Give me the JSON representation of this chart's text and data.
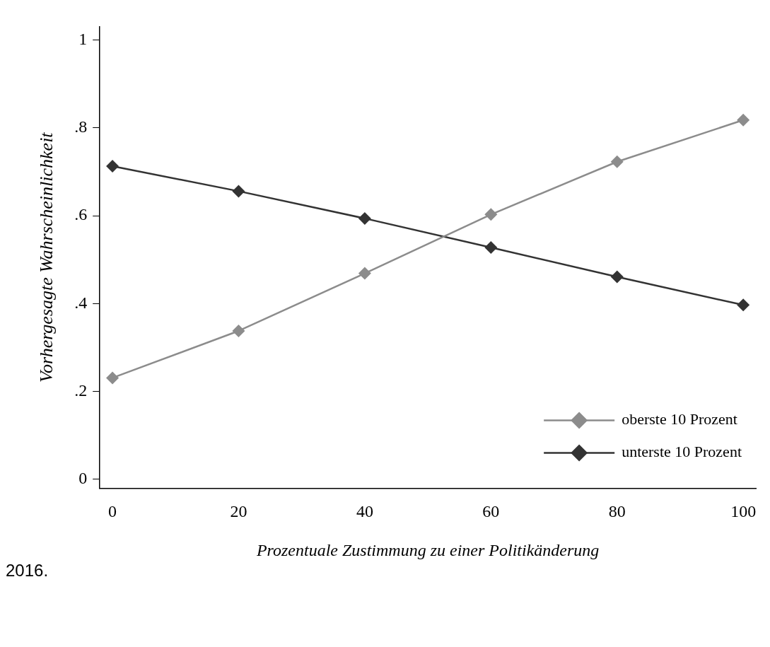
{
  "chart_data": {
    "type": "line",
    "xlabel": "Prozentuale Zustimmung zu einer Politikänderung",
    "ylabel": "Vorhergesagte Wahrscheinlichkeit",
    "x": [
      0,
      20,
      40,
      60,
      80,
      100
    ],
    "series": [
      {
        "name": "oberste 10 Prozent",
        "color": "#8c8c8c",
        "values": [
          0.231,
          0.338,
          0.469,
          0.603,
          0.723,
          0.818
        ]
      },
      {
        "name": "unterste 10 Prozent",
        "color": "#333333",
        "values": [
          0.713,
          0.656,
          0.594,
          0.528,
          0.461,
          0.397
        ]
      }
    ],
    "xlim": [
      -2,
      102
    ],
    "xticks": [
      0,
      20,
      40,
      60,
      80,
      100
    ],
    "ylim": [
      -0.02,
      1.03
    ],
    "yticks": [
      0,
      {
        "value": 0.2,
        "label": ".2"
      },
      {
        "value": 0.4,
        "label": ".4"
      },
      {
        "value": 0.6,
        "label": ".6"
      },
      {
        "value": 0.8,
        "label": ".8"
      },
      1
    ],
    "grid": false,
    "legend": "bottom right",
    "marker": "diamond",
    "line_style": "solid",
    "annotations": [
      "2016."
    ]
  }
}
